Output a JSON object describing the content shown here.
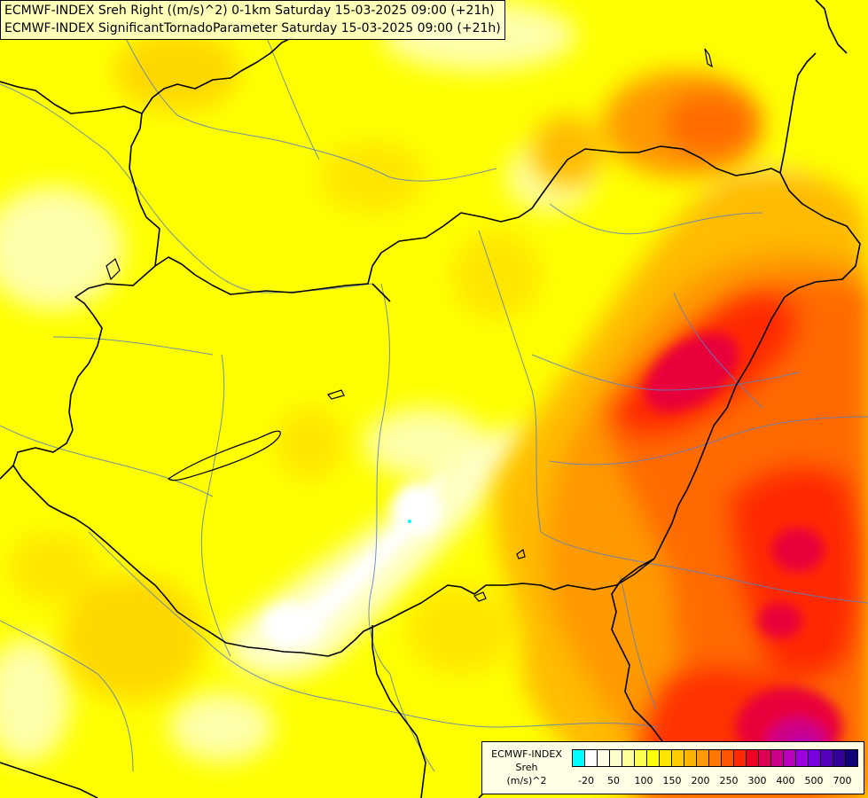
{
  "header": {
    "line1": "ECMWF-INDEX Sreh Right ((m/s)^2) 0-1km Saturday 15-03-2025 09:00 (+21h)",
    "line2": "ECMWF-INDEX SignificantTornadoParameter Saturday 15-03-2025 09:00 (+21h)"
  },
  "legend": {
    "line1": "ECMWF-INDEX",
    "line2": "Sreh",
    "line3": "(m/s)^2",
    "colors": [
      "#00ffff",
      "#ffffff",
      "#ffffe6",
      "#ffffcc",
      "#ffff99",
      "#ffff4d",
      "#ffff00",
      "#ffe600",
      "#ffcc00",
      "#ffb300",
      "#ff9900",
      "#ff7700",
      "#ff5500",
      "#ff2a00",
      "#ee0022",
      "#dd0055",
      "#cc0088",
      "#bb00bb",
      "#9900dd",
      "#7700dd",
      "#5500bb",
      "#330099",
      "#110077"
    ],
    "tick_labels": [
      "-20",
      "50",
      "100",
      "150",
      "200",
      "250",
      "300",
      "400",
      "500",
      "700"
    ]
  },
  "fields": {
    "colors": {
      "base": "#ffff00",
      "pale": "#ffffaa",
      "light": "#ffffd2",
      "white": "#ffffff",
      "gold": "#ffd700",
      "amber": "#ffbb00",
      "orange": "#ff9900",
      "deep_orange": "#ff6a00",
      "red": "#ff2a00",
      "crimson": "#e8003a",
      "magenta": "#cc0088",
      "violet": "#aa00cc",
      "cyan": "#00ffff"
    }
  }
}
